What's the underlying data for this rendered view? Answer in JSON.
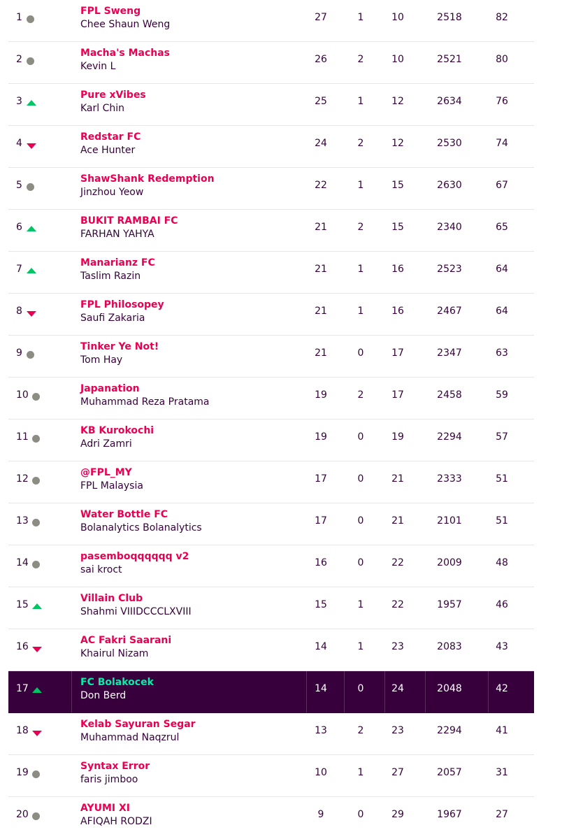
{
  "colors": {
    "team_name": "#e90052",
    "text": "#37003c",
    "highlight_bg": "#37003c",
    "highlight_team": "#05f0a6",
    "movement_up": "#01c464",
    "movement_down": "#e90052",
    "movement_same": "#8c8c83"
  },
  "standings": [
    {
      "rank": "1",
      "movement": "same",
      "team": "FPL Sweng",
      "manager": "Chee Shaun Weng",
      "w": "27",
      "d": "1",
      "l": "10",
      "pf": "2518",
      "pts": "82"
    },
    {
      "rank": "2",
      "movement": "same",
      "team": "Macha's Machas",
      "manager": "Kevin L",
      "w": "26",
      "d": "2",
      "l": "10",
      "pf": "2521",
      "pts": "80"
    },
    {
      "rank": "3",
      "movement": "up",
      "team": "Pure xVibes",
      "manager": "Karl Chin",
      "w": "25",
      "d": "1",
      "l": "12",
      "pf": "2634",
      "pts": "76"
    },
    {
      "rank": "4",
      "movement": "down",
      "team": "Redstar FC",
      "manager": "Ace Hunter",
      "w": "24",
      "d": "2",
      "l": "12",
      "pf": "2530",
      "pts": "74"
    },
    {
      "rank": "5",
      "movement": "same",
      "team": "ShawShank Redemption",
      "manager": "Jinzhou Yeow",
      "w": "22",
      "d": "1",
      "l": "15",
      "pf": "2630",
      "pts": "67"
    },
    {
      "rank": "6",
      "movement": "up",
      "team": "BUKIT RAMBAI FC",
      "manager": "FARHAN YAHYA",
      "w": "21",
      "d": "2",
      "l": "15",
      "pf": "2340",
      "pts": "65"
    },
    {
      "rank": "7",
      "movement": "up",
      "team": "Manarianz FC",
      "manager": "Taslim Razin",
      "w": "21",
      "d": "1",
      "l": "16",
      "pf": "2523",
      "pts": "64"
    },
    {
      "rank": "8",
      "movement": "down",
      "team": "FPL Philosopey",
      "manager": "Saufi Zakaria",
      "w": "21",
      "d": "1",
      "l": "16",
      "pf": "2467",
      "pts": "64"
    },
    {
      "rank": "9",
      "movement": "same",
      "team": "Tinker Ye Not!",
      "manager": "Tom Hay",
      "w": "21",
      "d": "0",
      "l": "17",
      "pf": "2347",
      "pts": "63"
    },
    {
      "rank": "10",
      "movement": "same",
      "team": "Japanation",
      "manager": "Muhammad Reza Pratama",
      "w": "19",
      "d": "2",
      "l": "17",
      "pf": "2458",
      "pts": "59"
    },
    {
      "rank": "11",
      "movement": "same",
      "team": "KB Kurokochi",
      "manager": "Adri Zamri",
      "w": "19",
      "d": "0",
      "l": "19",
      "pf": "2294",
      "pts": "57"
    },
    {
      "rank": "12",
      "movement": "same",
      "team": "@FPL_MY",
      "manager": "FPL Malaysia",
      "w": "17",
      "d": "0",
      "l": "21",
      "pf": "2333",
      "pts": "51"
    },
    {
      "rank": "13",
      "movement": "same",
      "team": "Water Bottle FC",
      "manager": "Bolanalytics Bolanalytics",
      "w": "17",
      "d": "0",
      "l": "21",
      "pf": "2101",
      "pts": "51"
    },
    {
      "rank": "14",
      "movement": "same",
      "team": "pasemboqqqqqq v2",
      "manager": "sai kroct",
      "w": "16",
      "d": "0",
      "l": "22",
      "pf": "2009",
      "pts": "48"
    },
    {
      "rank": "15",
      "movement": "up",
      "team": "Villain Club",
      "manager": "Shahmi VIIIDCCCLXVIII",
      "w": "15",
      "d": "1",
      "l": "22",
      "pf": "1957",
      "pts": "46"
    },
    {
      "rank": "16",
      "movement": "down",
      "team": "AC Fakri Saarani",
      "manager": "Khairul Nizam",
      "w": "14",
      "d": "1",
      "l": "23",
      "pf": "2083",
      "pts": "43"
    },
    {
      "rank": "17",
      "movement": "up",
      "team": "FC Bolakocek",
      "manager": "Don Berd",
      "w": "14",
      "d": "0",
      "l": "24",
      "pf": "2048",
      "pts": "42",
      "highlight": true
    },
    {
      "rank": "18",
      "movement": "down",
      "team": "Kelab Sayuran Segar",
      "manager": "Muhammad Naqzrul",
      "w": "13",
      "d": "2",
      "l": "23",
      "pf": "2294",
      "pts": "41"
    },
    {
      "rank": "19",
      "movement": "same",
      "team": "Syntax Error",
      "manager": "faris jimboo",
      "w": "10",
      "d": "1",
      "l": "27",
      "pf": "2057",
      "pts": "31"
    },
    {
      "rank": "20",
      "movement": "same",
      "team": "AYUMI XI",
      "manager": "AFIQAH RODZI",
      "w": "9",
      "d": "0",
      "l": "29",
      "pf": "1967",
      "pts": "27"
    }
  ]
}
